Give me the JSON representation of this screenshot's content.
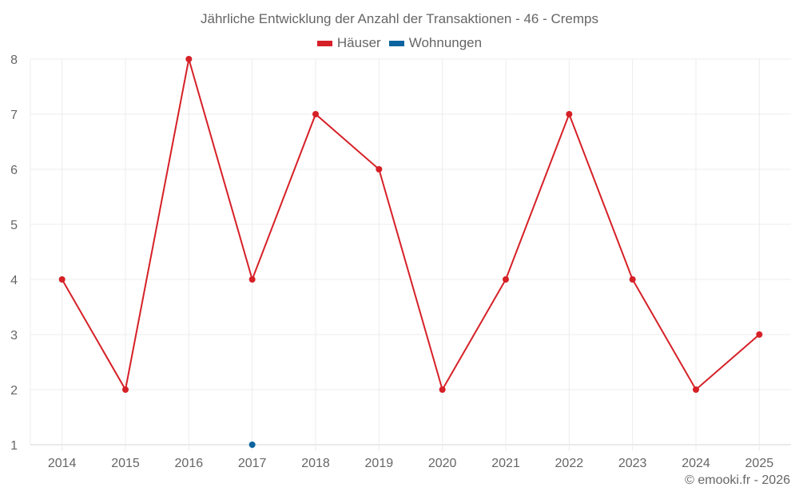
{
  "title": "Jährliche Entwicklung der Anzahl der Transaktionen - 46 - Cremps",
  "legend": [
    {
      "label": "Häuser",
      "color": "#d62027"
    },
    {
      "label": "Wohnungen",
      "color": "#0b64a0"
    }
  ],
  "credit": "© emooki.fr - 2026",
  "chart_data": {
    "type": "line",
    "title": "Jährliche Entwicklung der Anzahl der Transaktionen - 46 - Cremps",
    "xlabel": "",
    "ylabel": "",
    "categories": [
      "2014",
      "2015",
      "2016",
      "2017",
      "2018",
      "2019",
      "2020",
      "2021",
      "2022",
      "2023",
      "2024",
      "2025"
    ],
    "series": [
      {
        "name": "Häuser",
        "color": "#d62027",
        "values": [
          4,
          2,
          8,
          4,
          7,
          6,
          2,
          4,
          7,
          4,
          2,
          3
        ]
      },
      {
        "name": "Wohnungen",
        "color": "#0b64a0",
        "values": [
          null,
          null,
          null,
          1,
          null,
          null,
          null,
          null,
          null,
          null,
          null,
          null
        ]
      }
    ],
    "yticks": [
      1,
      2,
      3,
      4,
      5,
      6,
      7,
      8
    ],
    "ylim": [
      1,
      8
    ],
    "grid": true,
    "legend_position": "top"
  }
}
